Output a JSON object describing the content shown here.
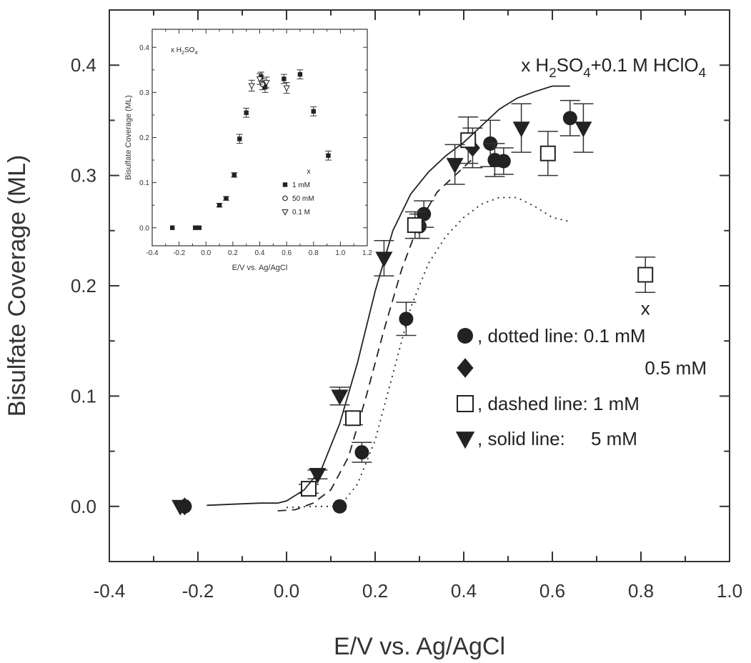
{
  "chart_data": [
    {
      "type": "scatter",
      "xlabel": "E/V vs. Ag/AgCl",
      "ylabel": "Bisulfate Coverage (ML)",
      "annotation": "x H2SO4+0.1 M HClO4",
      "annotation_x_marker": "x",
      "xlim": [
        -0.4,
        1.0
      ],
      "ylim": [
        -0.05,
        0.45
      ],
      "xticks": [
        "-0.4",
        "-0.2",
        "0.0",
        "0.2",
        "0.4",
        "0.6",
        "0.8",
        "1.0"
      ],
      "yticks": [
        "0.0",
        "0.1",
        "0.2",
        "0.3",
        "0.4"
      ],
      "legend_placement": "bottom-right",
      "series": [
        {
          "legend": ", dotted line: 0.1 mM",
          "marker": "filled-circle",
          "points": [
            [
              -0.23,
              0.0
            ],
            [
              0.12,
              0.0
            ],
            [
              0.17,
              0.049
            ],
            [
              0.27,
              0.17
            ],
            [
              0.3,
              0.254
            ],
            [
              0.31,
              0.265
            ],
            [
              0.46,
              0.329
            ],
            [
              0.47,
              0.314
            ],
            [
              0.49,
              0.313
            ],
            [
              0.64,
              0.352
            ]
          ],
          "errors": [
            0,
            0,
            0.009,
            0.015,
            0.011,
            0.012,
            0.021,
            0.015,
            0.012,
            0.016
          ],
          "line": [
            [
              0.0,
              -0.001
            ],
            [
              0.06,
              0.0
            ],
            [
              0.12,
              0.0
            ],
            [
              0.16,
              0.02
            ],
            [
              0.2,
              0.06
            ],
            [
              0.24,
              0.12
            ],
            [
              0.28,
              0.18
            ],
            [
              0.32,
              0.22
            ],
            [
              0.36,
              0.245
            ],
            [
              0.4,
              0.262
            ],
            [
              0.44,
              0.274
            ],
            [
              0.48,
              0.28
            ],
            [
              0.52,
              0.28
            ],
            [
              0.56,
              0.272
            ],
            [
              0.6,
              0.262
            ],
            [
              0.64,
              0.258
            ]
          ]
        },
        {
          "legend": "0.5 mM",
          "marker": "filled-diamond",
          "points": [
            [
              -0.23,
              0.0
            ],
            [
              0.42,
              0.325
            ]
          ],
          "errors": [
            0,
            0.018
          ]
        },
        {
          "legend": ", dashed line: 1 mM",
          "marker": "open-square",
          "points": [
            [
              0.05,
              0.016
            ],
            [
              0.15,
              0.08
            ],
            [
              0.29,
              0.255
            ],
            [
              0.41,
              0.332
            ],
            [
              0.59,
              0.32
            ],
            [
              0.81,
              0.21
            ]
          ],
          "errors": [
            0.004,
            0.006,
            0.012,
            0.021,
            0.02,
            0.016
          ],
          "line": [
            [
              -0.02,
              -0.004
            ],
            [
              0.02,
              -0.003
            ],
            [
              0.06,
              0.003
            ],
            [
              0.1,
              0.015
            ],
            [
              0.14,
              0.045
            ],
            [
              0.18,
              0.1
            ],
            [
              0.22,
              0.16
            ],
            [
              0.26,
              0.215
            ],
            [
              0.3,
              0.258
            ],
            [
              0.34,
              0.285
            ],
            [
              0.38,
              0.3
            ],
            [
              0.42,
              0.315
            ]
          ]
        },
        {
          "legend": ", solid line:     5 mM",
          "marker": "filled-triangle-down",
          "points": [
            [
              -0.24,
              0.0
            ],
            [
              0.07,
              0.029
            ],
            [
              0.12,
              0.1
            ],
            [
              0.22,
              0.225
            ],
            [
              0.38,
              0.31
            ],
            [
              0.53,
              0.343
            ],
            [
              0.67,
              0.343
            ]
          ],
          "errors": [
            0,
            0.004,
            0.008,
            0.016,
            0.018,
            0.022,
            0.022
          ],
          "line": [
            [
              -0.18,
              0.001
            ],
            [
              -0.12,
              0.002
            ],
            [
              -0.06,
              0.003
            ],
            [
              -0.02,
              0.003
            ],
            [
              0.0,
              0.005
            ],
            [
              0.04,
              0.015
            ],
            [
              0.08,
              0.035
            ],
            [
              0.12,
              0.075
            ],
            [
              0.16,
              0.13
            ],
            [
              0.2,
              0.195
            ],
            [
              0.24,
              0.25
            ],
            [
              0.28,
              0.283
            ],
            [
              0.32,
              0.303
            ],
            [
              0.36,
              0.318
            ],
            [
              0.4,
              0.33
            ],
            [
              0.44,
              0.345
            ],
            [
              0.48,
              0.36
            ],
            [
              0.52,
              0.37
            ],
            [
              0.56,
              0.376
            ],
            [
              0.6,
              0.381
            ],
            [
              0.64,
              0.381
            ]
          ]
        }
      ]
    },
    {
      "type": "scatter",
      "subplot": "inset",
      "annotation": "x H2SO4",
      "xlabel": "E/V vs. Ag/AgCl",
      "ylabel": "Bisulfate Coverage (ML)",
      "xlim": [
        -0.4,
        1.2
      ],
      "ylim": [
        -0.04,
        0.44
      ],
      "xticks": [
        "-0.4",
        "-0.2",
        "0.0",
        "0.2",
        "0.4",
        "0.6",
        "0.8",
        "1.0",
        "1.2"
      ],
      "yticks": [
        "0.0",
        "0.1",
        "0.2",
        "0.3",
        "0.4"
      ],
      "legend_header": "x",
      "series": [
        {
          "legend": "1 mM",
          "marker": "filled-square",
          "points": [
            [
              -0.25,
              0.0
            ],
            [
              -0.08,
              0.0
            ],
            [
              -0.05,
              0.0
            ],
            [
              0.1,
              0.05
            ],
            [
              0.15,
              0.065
            ],
            [
              0.21,
              0.117
            ],
            [
              0.25,
              0.197
            ],
            [
              0.3,
              0.255
            ],
            [
              0.41,
              0.335
            ],
            [
              0.44,
              0.312
            ],
            [
              0.58,
              0.33
            ],
            [
              0.7,
              0.34
            ],
            [
              0.8,
              0.258
            ],
            [
              0.91,
              0.16
            ]
          ],
          "errors": [
            0,
            0,
            0,
            0.004,
            0.004,
            0.005,
            0.01,
            0.01,
            0.01,
            0.012,
            0.01,
            0.01,
            0.01,
            0.01
          ]
        },
        {
          "legend": "50 mM",
          "marker": "open-circle",
          "points": [
            [
              0.42,
              0.318
            ]
          ],
          "errors": [
            0.012
          ]
        },
        {
          "legend": "0.1 M",
          "marker": "open-triangle-down",
          "points": [
            [
              0.34,
              0.315
            ],
            [
              0.4,
              0.33
            ],
            [
              0.45,
              0.322
            ],
            [
              0.6,
              0.31
            ]
          ],
          "errors": [
            0.012,
            0.012,
            0.012,
            0.012
          ]
        }
      ]
    }
  ]
}
